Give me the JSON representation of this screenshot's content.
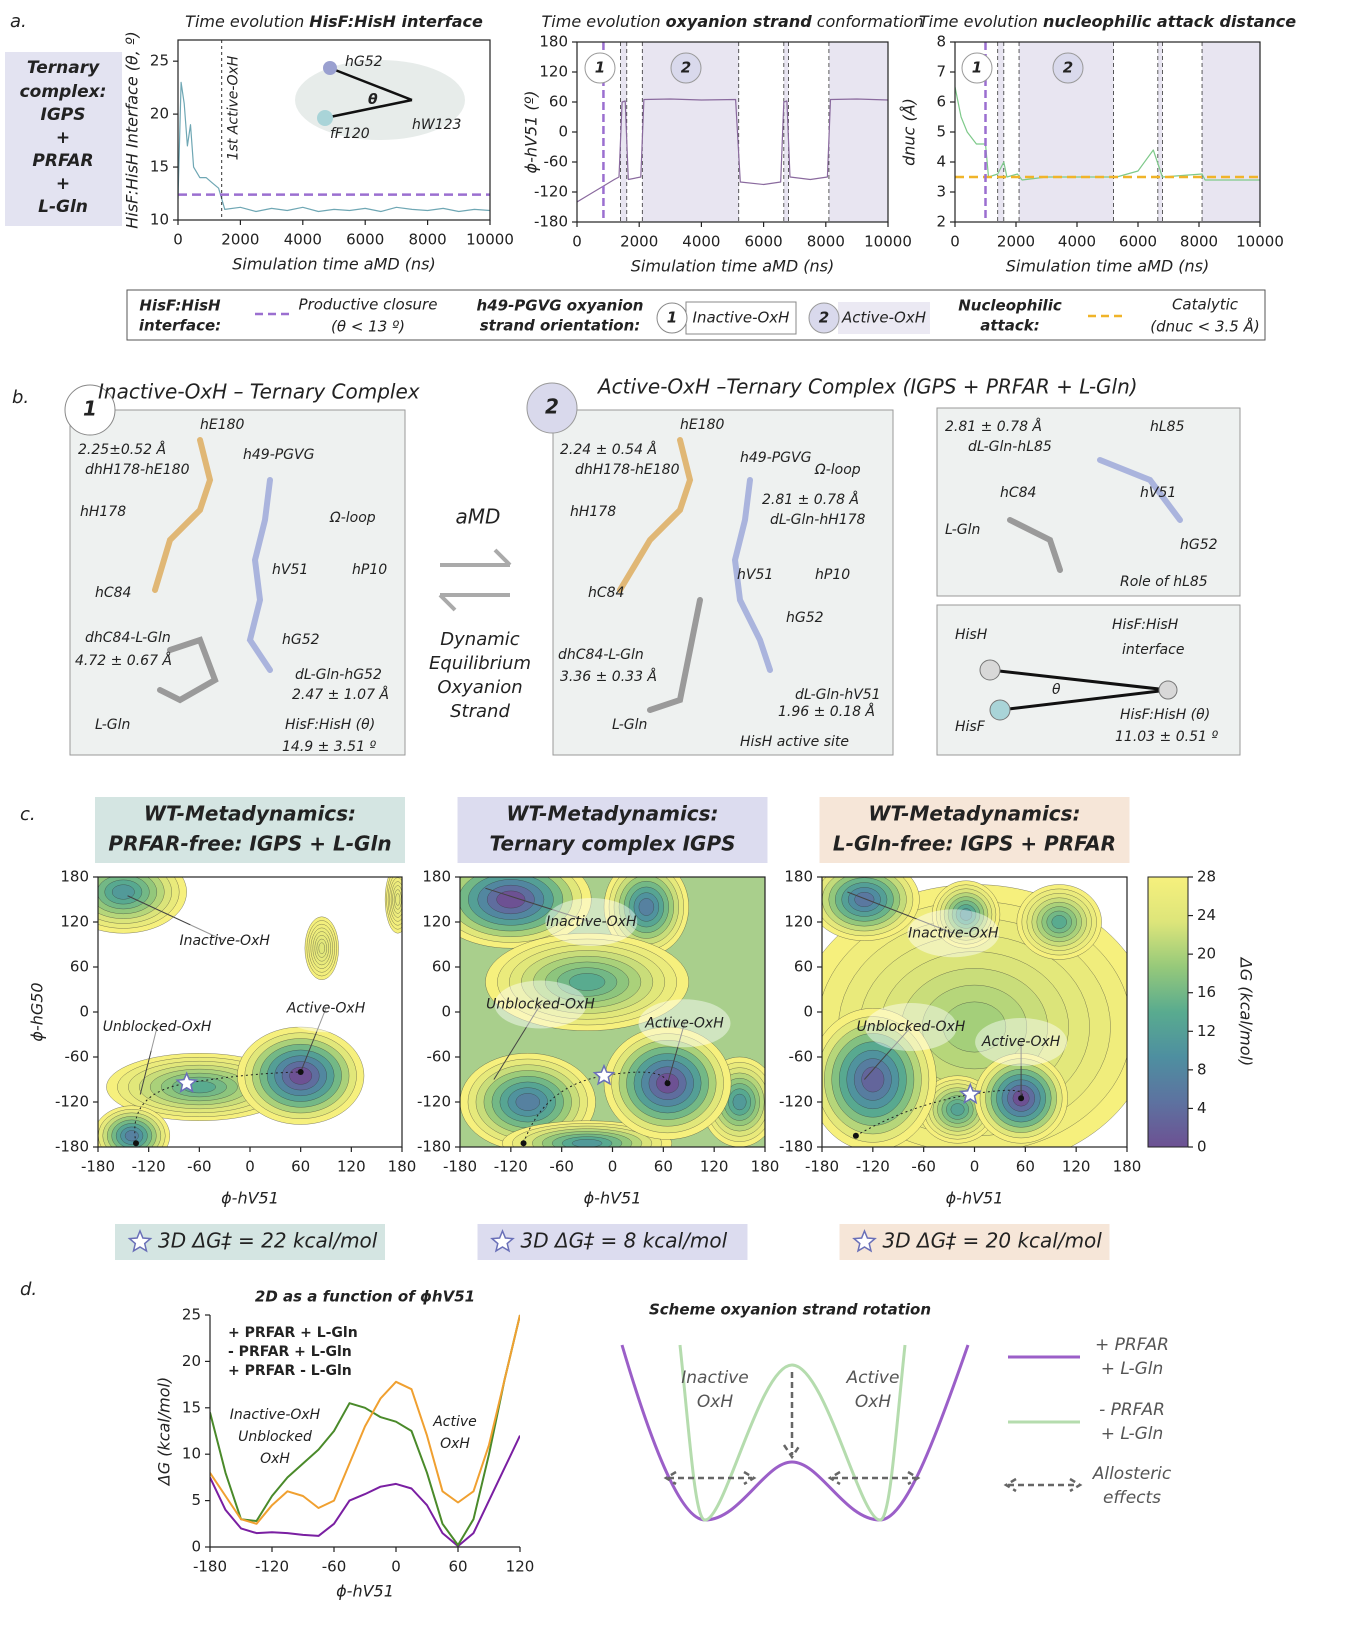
{
  "panel_a": {
    "label": "a.",
    "system_box": [
      "Ternary",
      "complex:",
      "IGPS",
      "+",
      "PRFAR",
      "+",
      "L-Gln"
    ]
  },
  "legend_a": {
    "interface": [
      "HisF:HisH",
      "interface:"
    ],
    "closure": [
      "Productive closure",
      "(θ < 13 º)"
    ],
    "strand": [
      "h49-PGVG oxyanion",
      "strand orientation:"
    ],
    "states": [
      {
        "number": "1",
        "label": "Inactive-OxH"
      },
      {
        "number": "2",
        "label": "Active-OxH"
      }
    ],
    "attack": [
      "Nucleophilic",
      "attack:"
    ],
    "catalytic": [
      "Catalytic",
      "(dnuc < 3.5 Å)"
    ]
  },
  "panel_b": {
    "label": "b.",
    "inactive": {
      "number": "1",
      "title": "Inactive-OxH – Ternary Complex",
      "labels": [
        "2.25±0.52 Å",
        "dhH178-hE180",
        "hE180",
        "h49-PGVG",
        "hH178",
        "Ω-loop",
        "hV51",
        "hP10",
        "hC84",
        "dhC84-L-Gln",
        "4.72 ± 0.67 Å",
        "hG52",
        "dL-Gln-hG52",
        "2.47 ± 1.07 Å",
        "L-Gln",
        "HisF:HisH (θ)",
        "14.9  ±  3.51 º"
      ]
    },
    "exchange": {
      "method": "aMD",
      "caption": [
        "Dynamic",
        "Equilibrium",
        "Oxyanion",
        "Strand"
      ]
    },
    "active": {
      "number": "2",
      "title": "Active-OxH –Ternary Complex (IGPS + PRFAR + L-Gln)",
      "labels": [
        "hE180",
        "h49-PGVG",
        "2.24 ± 0.54 Å",
        "dhH178-hE180",
        "Ω-loop",
        "2.81  ±  0.78 Å",
        "dL-Gln-hH178",
        "hH178",
        "hV51",
        "hP10",
        "hC84",
        "hG52",
        "dhC84-L-Gln",
        "3.36 ± 0.33 Å",
        "dL-Gln-hV51",
        "1.96 ± 0.18 Å",
        "L-Gln",
        "HisH active site"
      ]
    },
    "hl85": {
      "labels": [
        "2.81 ± 0.78 Å",
        "hL85",
        "dL-Gln-hL85",
        "hC84",
        "hV51",
        "L-Gln",
        "hG52",
        "Role of hL85"
      ]
    },
    "interface": {
      "labels": [
        "HisH",
        "HisF:HisH",
        "interface",
        "θ",
        "HisF",
        "HisF:HisH (θ)",
        "11.03  ±  0.51 º"
      ]
    }
  },
  "panel_c": {
    "label": "c."
  },
  "panel_d": {
    "label": "d.",
    "scheme": {
      "title": "Scheme oxyanion strand rotation",
      "wells": [
        "Inactive",
        "OxH",
        "Active",
        "OxH"
      ],
      "legend": [
        [
          "+ PRFAR",
          "+ L-Gln"
        ],
        [
          "- PRFAR",
          "+ L-Gln"
        ],
        [
          "Allosteric",
          "effects"
        ]
      ]
    }
  },
  "chart_data": [
    {
      "type": "line",
      "title": [
        "Time evolution",
        "HisF:HisH interface"
      ],
      "xlabel": "Simulation time aMD (ns)",
      "ylabel": "HisF:HisH Interface (θ, º)",
      "x": [
        0,
        100,
        200,
        300,
        400,
        500,
        700,
        900,
        1100,
        1300,
        1500,
        2000,
        2500,
        3000,
        3500,
        4000,
        4500,
        5000,
        5500,
        6000,
        6500,
        7000,
        7500,
        8000,
        8500,
        9000,
        9500,
        10000
      ],
      "series": [
        {
          "color": "#6fa7b4",
          "values": [
            12,
            23,
            21,
            17,
            19,
            15,
            14,
            14,
            13.5,
            13,
            11,
            11.2,
            10.8,
            11.1,
            10.9,
            11.2,
            10.8,
            11,
            10.9,
            11.1,
            10.8,
            11.2,
            11,
            10.9,
            11.1,
            10.8,
            11,
            10.9
          ]
        }
      ],
      "xlim": [
        0,
        10000
      ],
      "xticks": [
        0,
        2000,
        4000,
        6000,
        8000,
        10000
      ],
      "ylim": [
        10,
        27
      ],
      "yticks": [
        10,
        15,
        20,
        25
      ],
      "hline": 12.4,
      "hline_color": "#9b6fd0",
      "vline": 1400,
      "vline_label": "1st Active-OxH",
      "inset_labels": [
        "hG52",
        "θ",
        "hW123",
        "fF120"
      ]
    },
    {
      "type": "line",
      "title": [
        "Time evolution",
        "oxyanion strand",
        "conformation"
      ],
      "xlabel": "Simulation time aMD (ns)",
      "ylabel": "ϕ-hV51 (º)",
      "x": [
        0,
        400,
        800,
        1200,
        1350,
        1450,
        1550,
        1650,
        2050,
        2150,
        3000,
        4000,
        5100,
        5250,
        6000,
        6550,
        6650,
        6750,
        6850,
        7500,
        8050,
        8150,
        9000,
        10000
      ],
      "series": [
        {
          "color": "#8a6a9e",
          "values": [
            -140,
            -125,
            -110,
            -95,
            -90,
            60,
            62,
            -95,
            -90,
            65,
            66,
            64,
            65,
            -100,
            -105,
            -100,
            60,
            62,
            -90,
            -95,
            -90,
            65,
            66,
            64
          ]
        }
      ],
      "xlim": [
        0,
        10000
      ],
      "xticks": [
        0,
        2000,
        4000,
        6000,
        8000,
        10000
      ],
      "ylim": [
        -180,
        180
      ],
      "yticks": [
        -180,
        -120,
        -60,
        0,
        60,
        120,
        180
      ],
      "vline": 850,
      "vline_color": "#9b6fd0",
      "state_spans": [
        [
          1400,
          1600
        ],
        [
          2100,
          5200
        ],
        [
          6650,
          6800
        ],
        [
          8100,
          10000
        ]
      ],
      "state_labels": [
        "1",
        "2"
      ]
    },
    {
      "type": "line",
      "title": [
        "Time evolution",
        "nucleophilic attack distance"
      ],
      "xlabel": "Simulation time aMD (ns)",
      "ylabel": "dnuc (Å)",
      "x": [
        0,
        200,
        400,
        700,
        1000,
        1100,
        1400,
        1600,
        1700,
        2050,
        2200,
        3000,
        4000,
        5100,
        5300,
        6000,
        6500,
        6800,
        8100,
        8200,
        10000
      ],
      "series": [
        {
          "color": "#7ec98a",
          "values": [
            6.5,
            5.5,
            5,
            4.6,
            4.6,
            3.5,
            3.6,
            4,
            3.5,
            3.6,
            3.4,
            3.5,
            3.5,
            3.5,
            3.5,
            3.7,
            4.4,
            3.5,
            3.6,
            3.4,
            3.4
          ]
        }
      ],
      "xlim": [
        0,
        10000
      ],
      "xticks": [
        0,
        2000,
        4000,
        6000,
        8000,
        10000
      ],
      "ylim": [
        2,
        8
      ],
      "yticks": [
        2,
        3,
        4,
        5,
        6,
        7,
        8
      ],
      "hline": 3.5,
      "hline_color": "#f0b429",
      "vline": 1000,
      "vline_color": "#9b6fd0",
      "state_spans": [
        [
          1400,
          1600
        ],
        [
          2100,
          5200
        ],
        [
          6650,
          6800
        ],
        [
          8100,
          10000
        ]
      ],
      "state_labels": [
        "1",
        "2"
      ]
    },
    {
      "type": "contour",
      "title": [
        "WT-Metadynamics:",
        "PRFAR-free: IGPS + L-Gln"
      ],
      "title_color": "#d4e5e2",
      "xlabel": "ϕ-hV51",
      "ylabel": "ϕ-hG50",
      "xlim": [
        -180,
        180
      ],
      "xticks": [
        -180,
        -120,
        -60,
        0,
        60,
        120,
        180
      ],
      "ylim": [
        -180,
        180
      ],
      "yticks": [
        -180,
        -120,
        -60,
        0,
        60,
        120,
        180
      ],
      "annotations": [
        "Inactive-OxH",
        "Unblocked-OxH",
        "Active-OxH"
      ],
      "minima_x": [
        -135,
        60
      ],
      "minima_y": [
        -175,
        -80
      ],
      "ts_x": -75,
      "ts_y": -95,
      "barrier_label": "3D ΔG‡ = 22 kcal/mol"
    },
    {
      "type": "contour",
      "title": [
        "WT-Metadynamics:",
        "Ternary complex IGPS"
      ],
      "title_color": "#dcdcef",
      "xlabel": "ϕ-hV51",
      "xlim": [
        -180,
        180
      ],
      "xticks": [
        -180,
        -120,
        -60,
        0,
        60,
        120,
        180
      ],
      "ylim": [
        -180,
        180
      ],
      "yticks": [
        -180,
        -120,
        -60,
        0,
        60,
        120,
        180
      ],
      "annotations": [
        "Inactive-OxH",
        "Unblocked-OxH",
        "Active-OxH"
      ],
      "minima_x": [
        -105,
        65
      ],
      "minima_y": [
        -175,
        -95
      ],
      "ts_x": -10,
      "ts_y": -85,
      "barrier_label": "3D ΔG‡ = 8 kcal/mol"
    },
    {
      "type": "contour",
      "title": [
        "WT-Metadynamics:",
        "L-Gln-free: IGPS + PRFAR"
      ],
      "title_color": "#f6e6d8",
      "xlabel": "ϕ-hV51",
      "xlim": [
        -180,
        180
      ],
      "xticks": [
        -180,
        -120,
        -60,
        0,
        60,
        120,
        180
      ],
      "ylim": [
        -180,
        180
      ],
      "yticks": [
        -180,
        -120,
        -60,
        0,
        60,
        120,
        180
      ],
      "annotations": [
        "Inactive-OxH",
        "Unblocked-OxH",
        "Active-OxH"
      ],
      "minima_x": [
        -140,
        55
      ],
      "minima_y": [
        -165,
        -115
      ],
      "ts_x": -5,
      "ts_y": -110,
      "barrier_label": "3D ΔG‡ = 20 kcal/mol",
      "colorbar": {
        "label": "ΔG (kcal/mol)",
        "lim": [
          0,
          28
        ],
        "ticks": [
          0,
          4,
          8,
          12,
          16,
          20,
          24,
          28
        ]
      }
    },
    {
      "type": "line",
      "title": "2D  as a function of ϕhV51",
      "xlabel": "ϕ-hV51",
      "ylabel": "ΔG (kcal/mol)",
      "x": [
        -180,
        -165,
        -150,
        -135,
        -120,
        -105,
        -90,
        -75,
        -60,
        -45,
        -30,
        -15,
        0,
        15,
        30,
        45,
        60,
        75,
        90,
        105,
        120
      ],
      "series": [
        {
          "name": "+ PRFAR + L-Gln",
          "color": "#7a1fa2",
          "values": [
            7.5,
            4,
            2,
            1.5,
            1.6,
            1.5,
            1.3,
            1.2,
            2.5,
            5,
            5.7,
            6.5,
            6.8,
            6.3,
            4.5,
            1.5,
            0.1,
            1.5,
            5,
            8.5,
            12
          ]
        },
        {
          "name": "-  PRFAR + L-Gln",
          "color": "#4a8a2a",
          "values": [
            14.5,
            8,
            3,
            2.8,
            5.5,
            7.5,
            9,
            10.5,
            12.5,
            15.5,
            15,
            14,
            13.5,
            12.5,
            8,
            2.5,
            0.2,
            3,
            10,
            18,
            25
          ]
        },
        {
          "name": "+ PRFAR  - L-Gln",
          "color": "#f0a030",
          "values": [
            8,
            5.5,
            3,
            2.5,
            4.5,
            6,
            5.5,
            4.2,
            5,
            9,
            13,
            16,
            17.8,
            17,
            12,
            6,
            4.8,
            6,
            11,
            18,
            25
          ]
        }
      ],
      "xlim": [
        -180,
        120
      ],
      "xticks": [
        -180,
        -120,
        -60,
        0,
        60,
        120
      ],
      "ylim": [
        0,
        25
      ],
      "yticks": [
        0,
        5,
        10,
        15,
        20,
        25
      ],
      "annotations": [
        "Inactive-OxH",
        "Unblocked",
        "OxH",
        "Active",
        "OxH"
      ]
    }
  ]
}
